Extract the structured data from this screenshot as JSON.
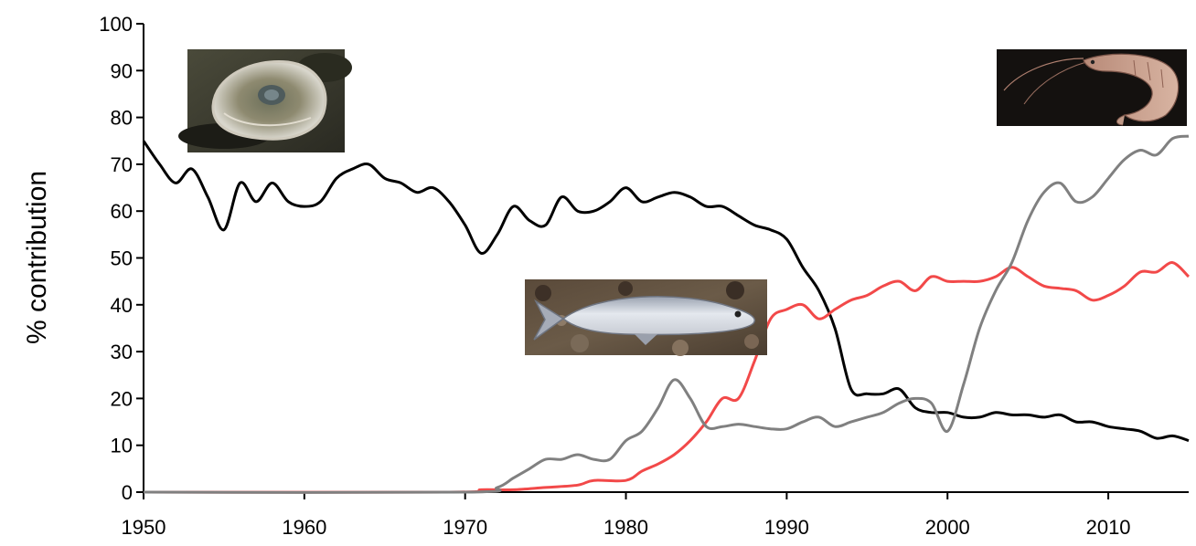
{
  "chart_data": {
    "type": "line",
    "title": "",
    "xlabel": "",
    "ylabel": "% contribution",
    "xlim": [
      1950,
      2015
    ],
    "ylim": [
      0,
      100
    ],
    "xticks": [
      "1950",
      "1960",
      "1970",
      "1980",
      "1990",
      "2000",
      "2010"
    ],
    "yticks": [
      "0",
      "10",
      "20",
      "30",
      "40",
      "50",
      "60",
      "70",
      "80",
      "90",
      "100"
    ],
    "grid": false,
    "legend": "none",
    "series": [
      {
        "color": "#000000",
        "icon": "oyster-photo",
        "points": [
          [
            1950,
            75
          ],
          [
            1951,
            70
          ],
          [
            1952,
            66
          ],
          [
            1953,
            69
          ],
          [
            1954,
            63
          ],
          [
            1955,
            56
          ],
          [
            1956,
            66
          ],
          [
            1957,
            62
          ],
          [
            1958,
            66
          ],
          [
            1959,
            62
          ],
          [
            1960,
            61
          ],
          [
            1961,
            62
          ],
          [
            1962,
            67
          ],
          [
            1963,
            69
          ],
          [
            1964,
            70
          ],
          [
            1965,
            67
          ],
          [
            1966,
            66
          ],
          [
            1967,
            64
          ],
          [
            1968,
            65
          ],
          [
            1969,
            62
          ],
          [
            1970,
            57
          ],
          [
            1971,
            51
          ],
          [
            1972,
            55
          ],
          [
            1973,
            61
          ],
          [
            1974,
            58
          ],
          [
            1975,
            57
          ],
          [
            1976,
            63
          ],
          [
            1977,
            60
          ],
          [
            1978,
            60
          ],
          [
            1979,
            62
          ],
          [
            1980,
            65
          ],
          [
            1981,
            62
          ],
          [
            1982,
            63
          ],
          [
            1983,
            64
          ],
          [
            1984,
            63
          ],
          [
            1985,
            61
          ],
          [
            1986,
            61
          ],
          [
            1987,
            59
          ],
          [
            1988,
            57
          ],
          [
            1989,
            56
          ],
          [
            1990,
            54
          ],
          [
            1991,
            48
          ],
          [
            1992,
            43
          ],
          [
            1993,
            35
          ],
          [
            1994,
            22
          ],
          [
            1995,
            21
          ],
          [
            1996,
            21
          ],
          [
            1997,
            22
          ],
          [
            1998,
            18
          ],
          [
            1999,
            17
          ],
          [
            2000,
            17
          ],
          [
            2001,
            16
          ],
          [
            2002,
            16
          ],
          [
            2003,
            17
          ],
          [
            2004,
            16.5
          ],
          [
            2005,
            16.5
          ],
          [
            2006,
            16
          ],
          [
            2007,
            16.5
          ],
          [
            2008,
            15
          ],
          [
            2009,
            15
          ],
          [
            2010,
            14
          ],
          [
            2011,
            13.5
          ],
          [
            2012,
            13
          ],
          [
            2013,
            11.5
          ],
          [
            2014,
            12
          ],
          [
            2015,
            11
          ]
        ]
      },
      {
        "color": "#f24949",
        "icon": "salmon-photo",
        "points": [
          [
            1950,
            0
          ],
          [
            1969,
            0
          ],
          [
            1971,
            0.5
          ],
          [
            1973,
            0.5
          ],
          [
            1975,
            1
          ],
          [
            1977,
            1.5
          ],
          [
            1978,
            2.5
          ],
          [
            1980,
            2.5
          ],
          [
            1981,
            4.5
          ],
          [
            1982,
            6
          ],
          [
            1983,
            8
          ],
          [
            1984,
            11
          ],
          [
            1985,
            15
          ],
          [
            1986,
            20
          ],
          [
            1987,
            20
          ],
          [
            1988,
            28
          ],
          [
            1989,
            37
          ],
          [
            1990,
            39
          ],
          [
            1991,
            40
          ],
          [
            1992,
            37
          ],
          [
            1993,
            39
          ],
          [
            1994,
            41
          ],
          [
            1995,
            42
          ],
          [
            1996,
            44
          ],
          [
            1997,
            45
          ],
          [
            1998,
            43
          ],
          [
            1999,
            46
          ],
          [
            2000,
            45
          ],
          [
            2001,
            45
          ],
          [
            2002,
            45
          ],
          [
            2003,
            46
          ],
          [
            2004,
            48
          ],
          [
            2005,
            46
          ],
          [
            2006,
            44
          ],
          [
            2007,
            43.5
          ],
          [
            2008,
            43
          ],
          [
            2009,
            41
          ],
          [
            2010,
            42
          ],
          [
            2011,
            44
          ],
          [
            2012,
            47
          ],
          [
            2013,
            47
          ],
          [
            2014,
            49
          ],
          [
            2015,
            46
          ]
        ]
      },
      {
        "color": "#808080",
        "icon": "shrimp-photo",
        "points": [
          [
            1950,
            0
          ],
          [
            1970,
            0
          ],
          [
            1972,
            1
          ],
          [
            1973,
            3
          ],
          [
            1974,
            5
          ],
          [
            1975,
            7
          ],
          [
            1976,
            7
          ],
          [
            1977,
            8
          ],
          [
            1978,
            7
          ],
          [
            1979,
            7
          ],
          [
            1980,
            11
          ],
          [
            1981,
            13
          ],
          [
            1982,
            18
          ],
          [
            1983,
            24
          ],
          [
            1984,
            20
          ],
          [
            1985,
            14
          ],
          [
            1986,
            14
          ],
          [
            1987,
            14.5
          ],
          [
            1988,
            14
          ],
          [
            1989,
            13.5
          ],
          [
            1990,
            13.5
          ],
          [
            1991,
            15
          ],
          [
            1992,
            16
          ],
          [
            1993,
            14
          ],
          [
            1994,
            15
          ],
          [
            1995,
            16
          ],
          [
            1996,
            17
          ],
          [
            1997,
            19
          ],
          [
            1998,
            20
          ],
          [
            1999,
            19
          ],
          [
            2000,
            13
          ],
          [
            2001,
            23
          ],
          [
            2002,
            35
          ],
          [
            2003,
            43
          ],
          [
            2004,
            49
          ],
          [
            2005,
            58
          ],
          [
            2006,
            64
          ],
          [
            2007,
            66
          ],
          [
            2008,
            62
          ],
          [
            2009,
            63
          ],
          [
            2010,
            67
          ],
          [
            2011,
            71
          ],
          [
            2012,
            73
          ],
          [
            2013,
            72
          ],
          [
            2014,
            75.5
          ],
          [
            2015,
            76
          ]
        ]
      }
    ]
  }
}
